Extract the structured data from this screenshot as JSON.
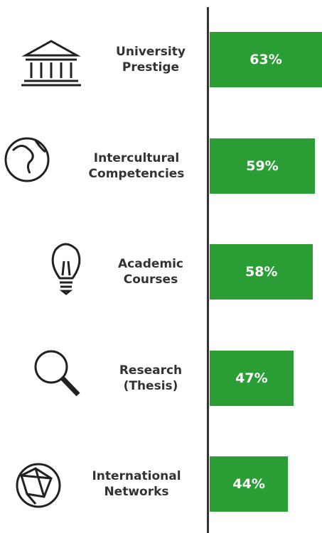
{
  "chart_data": {
    "type": "bar",
    "orientation": "horizontal",
    "categories": [
      "University Prestige",
      "Intercultural Competencies",
      "Academic Courses",
      "Research (Thesis)",
      "International Networks"
    ],
    "values": [
      63,
      59,
      58,
      47,
      44
    ],
    "value_labels": [
      "63%",
      "59%",
      "58%",
      "47%",
      "44%"
    ],
    "color": "#2a9d35",
    "xlim": [
      0,
      63
    ]
  }
}
